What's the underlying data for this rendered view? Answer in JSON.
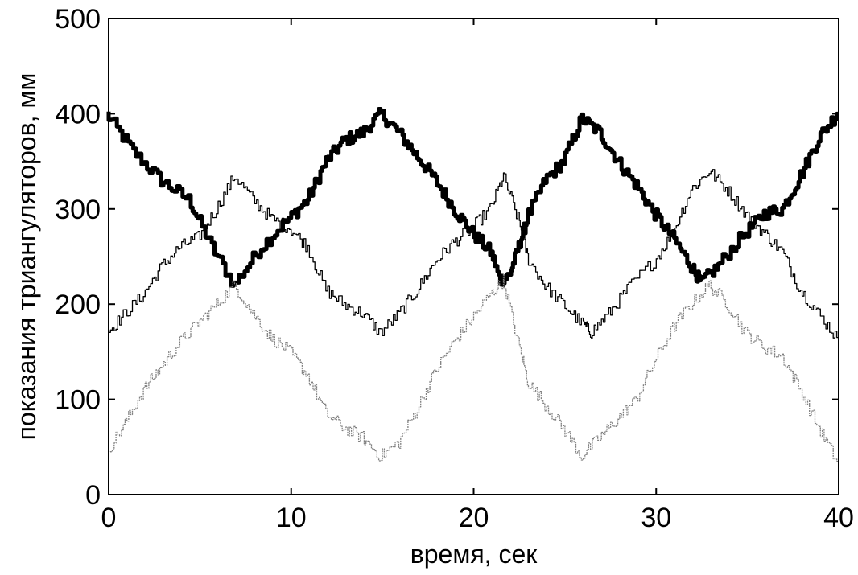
{
  "chart_data": {
    "type": "line",
    "title": "",
    "xlabel": "время, сек",
    "ylabel": "показания триангуляторов, мм",
    "xlim": [
      0,
      40
    ],
    "ylim": [
      0,
      500
    ],
    "xticks": [
      "0",
      "10",
      "20",
      "30",
      "40"
    ],
    "yticks": [
      "0",
      "100",
      "200",
      "300",
      "400",
      "500"
    ],
    "grid": false,
    "legend": "none",
    "series": [
      {
        "color": "#000000",
        "style": "thick solid",
        "points": [
          [
            0,
            400
          ],
          [
            1.5,
            360
          ],
          [
            3,
            330
          ],
          [
            4.5,
            310
          ],
          [
            5.5,
            270
          ],
          [
            7,
            220
          ],
          [
            8.5,
            260
          ],
          [
            10,
            290
          ],
          [
            11,
            310
          ],
          [
            12,
            350
          ],
          [
            13,
            372
          ],
          [
            14,
            380
          ],
          [
            15,
            400
          ],
          [
            16,
            380
          ],
          [
            17,
            355
          ],
          [
            18,
            330
          ],
          [
            19,
            300
          ],
          [
            20,
            275
          ],
          [
            21,
            255
          ],
          [
            21.5,
            225
          ],
          [
            22,
            230
          ],
          [
            22.5,
            260
          ],
          [
            23,
            290
          ],
          [
            24,
            330
          ],
          [
            25,
            350
          ],
          [
            26,
            395
          ],
          [
            27,
            380
          ],
          [
            28,
            350
          ],
          [
            29,
            325
          ],
          [
            30,
            295
          ],
          [
            31,
            270
          ],
          [
            32,
            240
          ],
          [
            32.5,
            222
          ],
          [
            33.5,
            240
          ],
          [
            35,
            275
          ],
          [
            36,
            295
          ],
          [
            37,
            300
          ],
          [
            38,
            335
          ],
          [
            39,
            375
          ],
          [
            40,
            400
          ]
        ]
      },
      {
        "color": "#000000",
        "style": "thin solid",
        "points": [
          [
            0,
            170
          ],
          [
            1,
            190
          ],
          [
            2,
            210
          ],
          [
            3,
            240
          ],
          [
            4,
            260
          ],
          [
            5,
            270
          ],
          [
            6,
            300
          ],
          [
            7,
            335
          ],
          [
            8,
            310
          ],
          [
            9,
            290
          ],
          [
            10,
            280
          ],
          [
            11,
            260
          ],
          [
            12,
            215
          ],
          [
            13,
            200
          ],
          [
            14,
            190
          ],
          [
            15,
            170
          ],
          [
            16,
            190
          ],
          [
            17,
            215
          ],
          [
            18,
            245
          ],
          [
            19,
            265
          ],
          [
            20,
            280
          ],
          [
            21,
            300
          ],
          [
            21.7,
            335
          ],
          [
            22.5,
            290
          ],
          [
            23,
            250
          ],
          [
            24,
            220
          ],
          [
            25,
            200
          ],
          [
            26,
            180
          ],
          [
            26.5,
            170
          ],
          [
            27.5,
            190
          ],
          [
            28.5,
            215
          ],
          [
            30,
            245
          ],
          [
            31,
            275
          ],
          [
            32,
            320
          ],
          [
            33,
            340
          ],
          [
            34,
            320
          ],
          [
            35,
            295
          ],
          [
            36,
            275
          ],
          [
            37,
            255
          ],
          [
            38,
            215
          ],
          [
            39,
            190
          ],
          [
            40,
            165
          ]
        ]
      },
      {
        "color": "#808080",
        "style": "thin dotted",
        "points": [
          [
            0,
            45
          ],
          [
            1,
            75
          ],
          [
            2,
            110
          ],
          [
            3,
            135
          ],
          [
            4,
            160
          ],
          [
            5,
            180
          ],
          [
            6,
            200
          ],
          [
            7,
            220
          ],
          [
            8,
            190
          ],
          [
            9,
            165
          ],
          [
            10,
            150
          ],
          [
            11,
            125
          ],
          [
            12,
            85
          ],
          [
            13,
            70
          ],
          [
            14,
            60
          ],
          [
            15,
            40
          ],
          [
            16,
            55
          ],
          [
            17,
            90
          ],
          [
            18,
            130
          ],
          [
            19,
            160
          ],
          [
            20,
            185
          ],
          [
            21,
            210
          ],
          [
            21.7,
            225
          ],
          [
            22.5,
            160
          ],
          [
            23,
            120
          ],
          [
            24,
            95
          ],
          [
            25,
            70
          ],
          [
            26,
            40
          ],
          [
            27,
            60
          ],
          [
            28,
            80
          ],
          [
            29,
            100
          ],
          [
            30,
            140
          ],
          [
            31,
            175
          ],
          [
            32,
            200
          ],
          [
            33,
            220
          ],
          [
            34,
            200
          ],
          [
            35,
            170
          ],
          [
            36,
            155
          ],
          [
            37,
            145
          ],
          [
            38,
            110
          ],
          [
            39,
            70
          ],
          [
            40,
            35
          ]
        ]
      }
    ]
  }
}
